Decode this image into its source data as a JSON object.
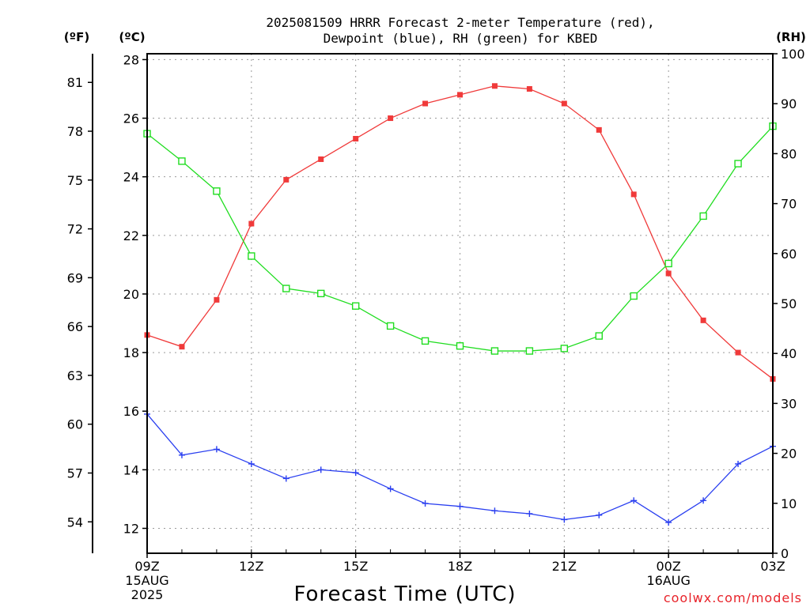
{
  "chart_data": {
    "type": "line",
    "title_line1": "2025081509 HRRR Forecast 2-meter Temperature (red),",
    "title_line2": "Dewpoint (blue), RH (green) for KBED",
    "unit_f": "(ºF)",
    "unit_c": "(ºC)",
    "unit_rh": "(RH)",
    "xlabel": "Forecast Time (UTC)",
    "credit": "coolwx.com/models",
    "x_hours": [
      0,
      1,
      2,
      3,
      4,
      5,
      6,
      7,
      8,
      9,
      10,
      11,
      12,
      13,
      14,
      15,
      16,
      17,
      18
    ],
    "x_ticks": [
      {
        "hour": 0,
        "lines": [
          "09Z",
          "15AUG",
          "2025"
        ]
      },
      {
        "hour": 3,
        "lines": [
          "12Z"
        ]
      },
      {
        "hour": 6,
        "lines": [
          "15Z"
        ]
      },
      {
        "hour": 9,
        "lines": [
          "18Z"
        ]
      },
      {
        "hour": 12,
        "lines": [
          "21Z"
        ]
      },
      {
        "hour": 15,
        "lines": [
          "00Z",
          "16AUG"
        ]
      },
      {
        "hour": 18,
        "lines": [
          "03Z"
        ]
      }
    ],
    "y_left_c": {
      "ticks": [
        "12",
        "14",
        "16",
        "18",
        "20",
        "22",
        "24",
        "26",
        "28"
      ],
      "ylim": [
        11.15,
        28.2
      ]
    },
    "y_far_left_f": {
      "ticks": [
        "54",
        "57",
        "60",
        "63",
        "66",
        "69",
        "72",
        "75",
        "78",
        "81"
      ]
    },
    "y_right_rh": {
      "ticks": [
        "0",
        "10",
        "20",
        "30",
        "40",
        "50",
        "60",
        "70",
        "80",
        "90",
        "100"
      ],
      "ylim": [
        0,
        100
      ]
    },
    "grid": true,
    "series": [
      {
        "color": "#f03a3a",
        "marker": "filled-square",
        "axis": "c",
        "values": [
          18.6,
          18.2,
          19.8,
          22.4,
          23.9,
          24.6,
          25.3,
          26.0,
          26.5,
          26.8,
          27.1,
          27.0,
          26.5,
          25.6,
          23.4,
          20.7,
          19.1,
          18.0,
          17.1
        ]
      },
      {
        "color": "#2a3ff0",
        "marker": "plus",
        "axis": "c",
        "values": [
          15.9,
          14.5,
          14.7,
          14.2,
          13.7,
          14.0,
          13.9,
          13.35,
          12.85,
          12.75,
          12.6,
          12.5,
          12.3,
          12.45,
          12.95,
          12.2,
          12.95,
          14.2,
          14.8
        ]
      },
      {
        "color": "#20dd20",
        "marker": "open-square",
        "axis": "rh",
        "values": [
          84,
          78.5,
          72.5,
          59.5,
          53,
          52,
          49.5,
          45.5,
          42.5,
          41.5,
          40.5,
          40.5,
          41,
          43.5,
          51.5,
          58,
          67.5,
          78,
          85.5
        ]
      }
    ]
  }
}
